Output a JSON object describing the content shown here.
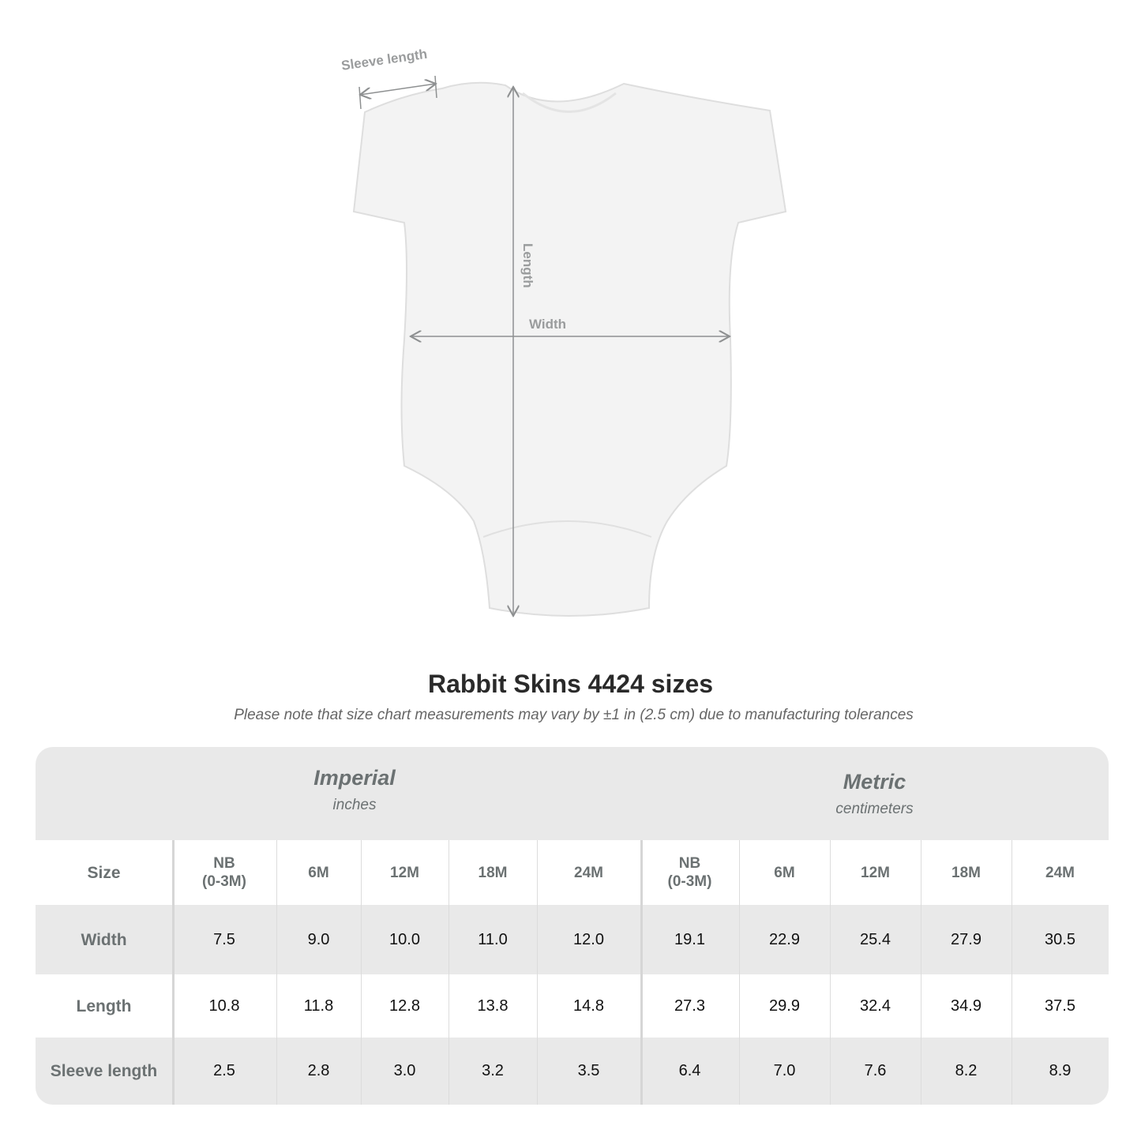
{
  "diagram": {
    "labels": {
      "sleeve": "Sleeve length",
      "length": "Length",
      "width": "Width"
    }
  },
  "title": "Rabbit Skins 4424 sizes",
  "note": "Please note that size chart measurements may vary by ±1 in (2.5 cm) due to manufacturing tolerances",
  "table": {
    "imperial": {
      "name": "Imperial",
      "unit": "inches"
    },
    "metric": {
      "name": "Metric",
      "unit": "centimeters"
    },
    "size_label": "Size",
    "sizes": [
      "NB\n(0-3M)",
      "6M",
      "12M",
      "18M",
      "24M",
      "NB\n(0-3M)",
      "6M",
      "12M",
      "18M",
      "24M"
    ],
    "rows": [
      {
        "label": "Width",
        "values": [
          "7.5",
          "9.0",
          "10.0",
          "11.0",
          "12.0",
          "19.1",
          "22.9",
          "25.4",
          "27.9",
          "30.5"
        ]
      },
      {
        "label": "Length",
        "values": [
          "10.8",
          "11.8",
          "12.8",
          "13.8",
          "14.8",
          "27.3",
          "29.9",
          "32.4",
          "34.9",
          "37.5"
        ]
      },
      {
        "label": "Sleeve length",
        "values": [
          "2.5",
          "2.8",
          "3.0",
          "3.2",
          "3.5",
          "6.4",
          "7.0",
          "7.6",
          "8.2",
          "8.9"
        ]
      }
    ]
  }
}
